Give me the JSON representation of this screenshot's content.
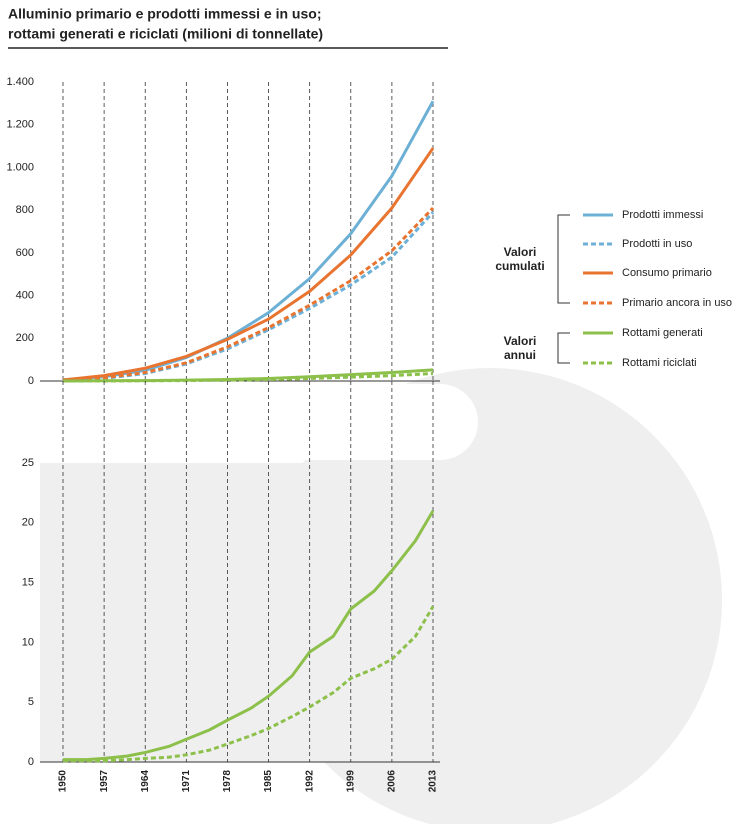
{
  "title": [
    "Alluminio primario e prodotti immessi e in uso;",
    "rottami generati e riciclati (milioni di tonnellate)"
  ],
  "chart_data": [
    {
      "type": "line",
      "x": [
        1950,
        1957,
        1964,
        1971,
        1978,
        1985,
        1992,
        1999,
        2006,
        2013
      ],
      "xlim": [
        1950,
        2013
      ],
      "xticks": [
        1950,
        1957,
        1964,
        1971,
        1978,
        1985,
        1992,
        1999,
        2006,
        2013
      ],
      "ylim": [
        0,
        1400
      ],
      "yticks": [
        0,
        200,
        400,
        600,
        800,
        {
          "value": 1000,
          "label": "1.000"
        },
        {
          "value": 1200,
          "label": "1.200"
        },
        {
          "value": 1400,
          "label": "1.400"
        }
      ],
      "grid": "x",
      "legend": "right",
      "series": [
        {
          "name": "Prodotti immessi",
          "group": "Valori cumulati",
          "color": "#6cb0d6",
          "dashed": false,
          "values": [
            5,
            20,
            50,
            110,
            200,
            320,
            480,
            690,
            960,
            1310
          ]
        },
        {
          "name": "Prodotti in uso",
          "group": "Valori cumulati",
          "color": "#6cb0d6",
          "dashed": true,
          "values": [
            3,
            12,
            35,
            80,
            150,
            240,
            340,
            450,
            580,
            790
          ]
        },
        {
          "name": "Consumo primario",
          "group": "Valori cumulati",
          "color": "#e8742f",
          "dashed": false,
          "values": [
            5,
            25,
            60,
            115,
            195,
            290,
            420,
            590,
            810,
            1090
          ]
        },
        {
          "name": "Primario ancora in uso",
          "group": "Valori cumulati",
          "color": "#e8742f",
          "dashed": true,
          "values": [
            3,
            15,
            40,
            85,
            160,
            250,
            355,
            470,
            610,
            810
          ]
        },
        {
          "name": "Rottami generati",
          "group": "Valori annui",
          "color": "#8cc04a",
          "dashed": false,
          "values": [
            0,
            1,
            2,
            4,
            7,
            12,
            20,
            30,
            40,
            52
          ]
        },
        {
          "name": "Rottami riciclati",
          "group": "Valori annui",
          "color": "#8cc04a",
          "dashed": true,
          "values": [
            0,
            0.5,
            1,
            2,
            4,
            7,
            12,
            18,
            25,
            35
          ]
        }
      ]
    },
    {
      "type": "line",
      "x": [
        1950,
        1954,
        1957,
        1961,
        1964,
        1968,
        1971,
        1975,
        1978,
        1982,
        1985,
        1989,
        1992,
        1996,
        1999,
        2003,
        2006,
        2010,
        2013
      ],
      "xlim": [
        1950,
        2013
      ],
      "xticks": [
        1950,
        1957,
        1964,
        1971,
        1978,
        1985,
        1992,
        1999,
        2006,
        2013
      ],
      "ylim": [
        0,
        25
      ],
      "yticks": [
        0,
        5,
        10,
        15,
        20,
        25
      ],
      "grid": "x",
      "series": [
        {
          "color": "#8cc04a",
          "dashed": false,
          "values": [
            0.2,
            0.2,
            0.3,
            0.5,
            0.8,
            1.3,
            1.9,
            2.7,
            3.5,
            4.5,
            5.5,
            7.2,
            9.2,
            10.5,
            12.8,
            14.3,
            16,
            18.5,
            21
          ]
        },
        {
          "color": "#8cc04a",
          "dashed": true,
          "values": [
            0.1,
            0.1,
            0.1,
            0.2,
            0.3,
            0.4,
            0.6,
            1,
            1.5,
            2.2,
            2.8,
            3.8,
            4.6,
            5.8,
            7,
            7.8,
            8.6,
            10.5,
            13
          ]
        }
      ]
    }
  ]
}
